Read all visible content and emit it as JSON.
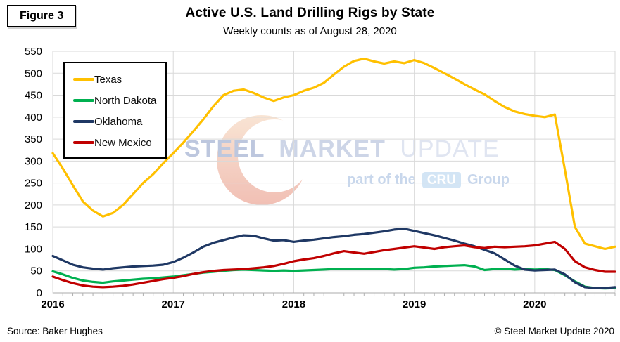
{
  "figure_label": "Figure 3",
  "footer": {
    "source": "Source: Baker Hughes",
    "copyright": "© Steel Market Update 2020"
  },
  "watermark": {
    "steel": "STEEL",
    "market": "MARKET",
    "update": "UPDATE",
    "part_of_the": "part of the",
    "cru": "CRU",
    "group": "Group"
  },
  "chart_data": {
    "type": "line",
    "title": "Active U.S. Land Drilling Rigs by State",
    "subtitle": "Weekly counts as of August 28, 2020",
    "xlabel": "",
    "ylabel": "",
    "x_start_year": 2016.0,
    "x_step_years": 0.08333,
    "x_end_label": "August 28, 2020",
    "x_tick_labels": [
      "2016",
      "2017",
      "2018",
      "2019",
      "2020"
    ],
    "ylim": [
      0,
      550
    ],
    "y_tick_step": 50,
    "grid": true,
    "legend_position": "top-left",
    "colors": {
      "gridline": "#d9d9d9",
      "axis": "#ababab",
      "minor_tick": "#b0b0b0"
    },
    "series": [
      {
        "name": "Texas",
        "color": "#FFC000",
        "values": [
          318,
          283,
          245,
          208,
          187,
          174,
          182,
          200,
          225,
          250,
          270,
          295,
          318,
          342,
          368,
          395,
          425,
          450,
          460,
          463,
          455,
          445,
          437,
          445,
          450,
          460,
          467,
          478,
          497,
          515,
          528,
          533,
          527,
          522,
          527,
          523,
          530,
          523,
          512,
          500,
          488,
          475,
          463,
          452,
          437,
          423,
          413,
          407,
          403,
          400,
          406,
          280,
          150,
          112,
          106,
          100,
          105
        ]
      },
      {
        "name": "North Dakota",
        "color": "#00B050",
        "values": [
          49,
          42,
          34,
          28,
          25,
          23,
          26,
          28,
          30,
          32,
          33,
          35,
          37,
          40,
          43,
          46,
          48,
          50,
          52,
          53,
          52,
          51,
          50,
          51,
          50,
          51,
          52,
          53,
          54,
          55,
          55,
          54,
          55,
          54,
          53,
          54,
          57,
          58,
          60,
          61,
          62,
          63,
          60,
          52,
          54,
          55,
          53,
          54,
          53,
          54,
          52,
          40,
          26,
          14,
          11,
          10,
          11
        ]
      },
      {
        "name": "Oklahoma",
        "color": "#1F3864",
        "values": [
          84,
          74,
          64,
          58,
          55,
          53,
          56,
          58,
          60,
          61,
          62,
          64,
          70,
          80,
          92,
          105,
          114,
          120,
          126,
          131,
          130,
          124,
          119,
          120,
          116,
          119,
          121,
          124,
          127,
          129,
          132,
          134,
          137,
          140,
          144,
          146,
          141,
          136,
          131,
          125,
          119,
          112,
          106,
          98,
          90,
          76,
          62,
          53,
          51,
          52,
          53,
          42,
          24,
          13,
          11,
          11,
          13
        ]
      },
      {
        "name": "New Mexico",
        "color": "#C00000",
        "values": [
          37,
          29,
          22,
          17,
          14,
          13,
          14,
          16,
          19,
          23,
          27,
          31,
          34,
          38,
          43,
          47,
          50,
          52,
          53,
          54,
          56,
          58,
          61,
          66,
          72,
          76,
          79,
          84,
          90,
          95,
          92,
          89,
          93,
          97,
          100,
          103,
          106,
          103,
          100,
          104,
          106,
          108,
          104,
          102,
          105,
          104,
          105,
          106,
          108,
          112,
          116,
          100,
          72,
          58,
          52,
          48,
          48
        ]
      }
    ]
  }
}
